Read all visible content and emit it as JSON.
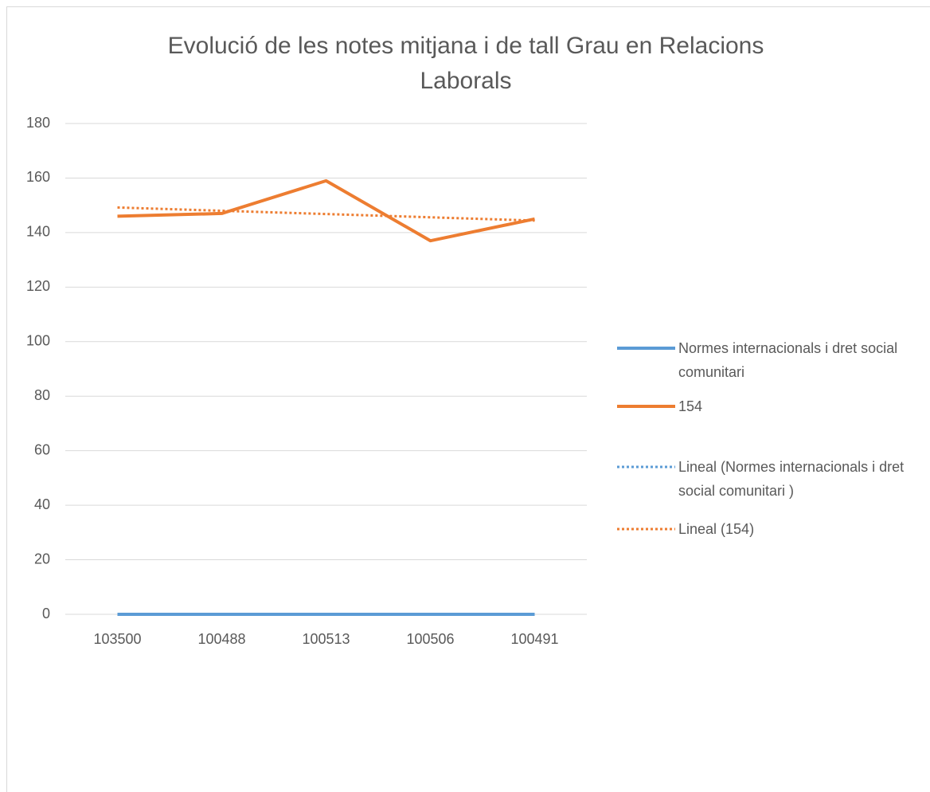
{
  "chart_data": {
    "type": "line",
    "title": "Evolució de les notes mitjana i de tall Grau en Relacions Laborals",
    "categories": [
      "103500",
      "100488",
      "100513",
      "100506",
      "100491"
    ],
    "series": [
      {
        "name": "Normes internacionals i dret social comunitari",
        "color": "#5b9bd5",
        "style": "solid",
        "values": [
          0,
          0,
          0,
          0,
          0
        ]
      },
      {
        "name": "154",
        "color": "#ed7d31",
        "style": "solid",
        "values": [
          146,
          147,
          159,
          137,
          145
        ]
      },
      {
        "name": "Lineal (Normes internacionals i dret social comunitari )",
        "color": "#5b9bd5",
        "style": "dotted",
        "values": [
          0,
          0,
          0,
          0,
          0
        ]
      },
      {
        "name": "Lineal (154)",
        "color": "#ed7d31",
        "style": "dotted",
        "values": [
          149.2,
          148,
          146.8,
          145.6,
          144.4
        ]
      }
    ],
    "ylim": [
      0,
      180
    ],
    "yticks": [
      0,
      20,
      40,
      60,
      80,
      100,
      120,
      140,
      160,
      180
    ],
    "grid": true,
    "legend": "right"
  }
}
